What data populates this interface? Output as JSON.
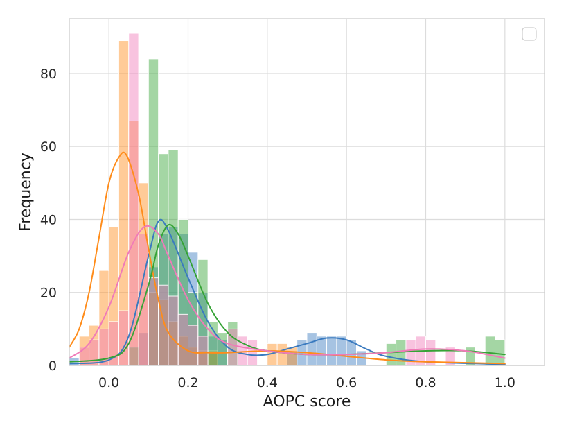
{
  "chart_data": {
    "type": "histogram",
    "title": "",
    "xlabel": "AOPC score",
    "ylabel": "Frequency",
    "xlim": [
      -0.1,
      1.1
    ],
    "ylim": [
      0,
      95
    ],
    "xticks": [
      {
        "value": 0.0,
        "label": "0.0"
      },
      {
        "value": 0.2,
        "label": "0.2"
      },
      {
        "value": 0.4,
        "label": "0.4"
      },
      {
        "value": 0.6,
        "label": "0.6"
      },
      {
        "value": 0.8,
        "label": "0.8"
      },
      {
        "value": 1.0,
        "label": "1.0"
      }
    ],
    "yticks": [
      {
        "value": 0,
        "label": "0"
      },
      {
        "value": 20,
        "label": "20"
      },
      {
        "value": 40,
        "label": "40"
      },
      {
        "value": 60,
        "label": "60"
      },
      {
        "value": 80,
        "label": "80"
      }
    ],
    "grid": true,
    "legend": {
      "placement": "top-right",
      "entries": []
    },
    "bin_width": 0.025,
    "series": [
      {
        "color": "#3a7abf",
        "bins": [
          {
            "x": -0.1,
            "y": 2
          },
          {
            "x": 0.075,
            "y": 9
          },
          {
            "x": 0.1,
            "y": 27
          },
          {
            "x": 0.125,
            "y": 36
          },
          {
            "x": 0.15,
            "y": 38
          },
          {
            "x": 0.175,
            "y": 36
          },
          {
            "x": 0.2,
            "y": 31
          },
          {
            "x": 0.225,
            "y": 20
          },
          {
            "x": 0.25,
            "y": 8
          },
          {
            "x": 0.275,
            "y": 7
          },
          {
            "x": 0.45,
            "y": 4
          },
          {
            "x": 0.475,
            "y": 7
          },
          {
            "x": 0.5,
            "y": 9
          },
          {
            "x": 0.525,
            "y": 8
          },
          {
            "x": 0.55,
            "y": 8
          },
          {
            "x": 0.575,
            "y": 8
          },
          {
            "x": 0.6,
            "y": 7
          },
          {
            "x": 0.625,
            "y": 4
          }
        ],
        "kde": [
          [
            -0.1,
            0.5
          ],
          [
            0.0,
            1.5
          ],
          [
            0.05,
            8
          ],
          [
            0.1,
            30
          ],
          [
            0.125,
            39.5
          ],
          [
            0.15,
            37
          ],
          [
            0.2,
            24
          ],
          [
            0.25,
            12
          ],
          [
            0.3,
            5
          ],
          [
            0.35,
            3
          ],
          [
            0.4,
            3
          ],
          [
            0.45,
            4.5
          ],
          [
            0.5,
            6
          ],
          [
            0.55,
            7.5
          ],
          [
            0.6,
            7
          ],
          [
            0.65,
            4.5
          ],
          [
            0.7,
            2.5
          ],
          [
            0.8,
            1
          ],
          [
            1.0,
            0.3
          ]
        ]
      },
      {
        "color": "#ff8c1a",
        "bins": [
          {
            "x": -0.075,
            "y": 8
          },
          {
            "x": -0.05,
            "y": 11
          },
          {
            "x": -0.025,
            "y": 26
          },
          {
            "x": 0.0,
            "y": 38
          },
          {
            "x": 0.025,
            "y": 89
          },
          {
            "x": 0.05,
            "y": 67
          },
          {
            "x": 0.075,
            "y": 50
          },
          {
            "x": 0.1,
            "y": 20
          },
          {
            "x": 0.125,
            "y": 18
          },
          {
            "x": 0.15,
            "y": 12
          },
          {
            "x": 0.175,
            "y": 8
          },
          {
            "x": 0.2,
            "y": 5
          },
          {
            "x": 0.225,
            "y": 4
          },
          {
            "x": 0.25,
            "y": 4
          },
          {
            "x": 0.4,
            "y": 6
          },
          {
            "x": 0.425,
            "y": 6
          },
          {
            "x": 0.45,
            "y": 5
          }
        ],
        "kde": [
          [
            -0.1,
            5
          ],
          [
            -0.075,
            10
          ],
          [
            -0.05,
            20
          ],
          [
            -0.025,
            35
          ],
          [
            0.0,
            50
          ],
          [
            0.025,
            57
          ],
          [
            0.045,
            57.5
          ],
          [
            0.075,
            47
          ],
          [
            0.1,
            32
          ],
          [
            0.125,
            18
          ],
          [
            0.15,
            9
          ],
          [
            0.2,
            4
          ],
          [
            0.25,
            3.5
          ],
          [
            0.3,
            3.5
          ],
          [
            0.4,
            4
          ],
          [
            0.5,
            3.5
          ],
          [
            0.6,
            2.5
          ],
          [
            0.7,
            1.5
          ],
          [
            0.8,
            1
          ],
          [
            1.0,
            0.5
          ]
        ]
      },
      {
        "color": "#36a336",
        "bins": [
          {
            "x": 0.05,
            "y": 5
          },
          {
            "x": 0.1,
            "y": 84
          },
          {
            "x": 0.125,
            "y": 58
          },
          {
            "x": 0.15,
            "y": 59
          },
          {
            "x": 0.175,
            "y": 40
          },
          {
            "x": 0.2,
            "y": 20
          },
          {
            "x": 0.225,
            "y": 29
          },
          {
            "x": 0.25,
            "y": 12
          },
          {
            "x": 0.275,
            "y": 9
          },
          {
            "x": 0.3,
            "y": 12
          },
          {
            "x": 0.7,
            "y": 6
          },
          {
            "x": 0.725,
            "y": 7
          },
          {
            "x": 0.9,
            "y": 5
          },
          {
            "x": 0.95,
            "y": 8
          },
          {
            "x": 0.975,
            "y": 7
          }
        ],
        "kde": [
          [
            -0.1,
            1
          ],
          [
            0.0,
            2
          ],
          [
            0.05,
            6
          ],
          [
            0.1,
            22
          ],
          [
            0.125,
            33
          ],
          [
            0.15,
            38.5
          ],
          [
            0.175,
            36
          ],
          [
            0.2,
            30
          ],
          [
            0.25,
            17
          ],
          [
            0.3,
            9
          ],
          [
            0.35,
            5.5
          ],
          [
            0.4,
            4
          ],
          [
            0.5,
            3
          ],
          [
            0.6,
            3
          ],
          [
            0.7,
            3.5
          ],
          [
            0.8,
            4
          ],
          [
            0.9,
            4
          ],
          [
            1.0,
            3
          ]
        ]
      },
      {
        "color": "#f07ab8",
        "bins": [
          {
            "x": -0.075,
            "y": 5
          },
          {
            "x": -0.05,
            "y": 7
          },
          {
            "x": -0.025,
            "y": 10
          },
          {
            "x": 0.0,
            "y": 12
          },
          {
            "x": 0.025,
            "y": 15
          },
          {
            "x": 0.05,
            "y": 91
          },
          {
            "x": 0.075,
            "y": 36
          },
          {
            "x": 0.1,
            "y": 24
          },
          {
            "x": 0.125,
            "y": 22
          },
          {
            "x": 0.15,
            "y": 19
          },
          {
            "x": 0.175,
            "y": 14
          },
          {
            "x": 0.2,
            "y": 11
          },
          {
            "x": 0.225,
            "y": 8
          },
          {
            "x": 0.3,
            "y": 10
          },
          {
            "x": 0.325,
            "y": 8
          },
          {
            "x": 0.35,
            "y": 7
          },
          {
            "x": 0.75,
            "y": 7
          },
          {
            "x": 0.775,
            "y": 8
          },
          {
            "x": 0.8,
            "y": 7
          },
          {
            "x": 0.85,
            "y": 5
          }
        ],
        "kde": [
          [
            -0.1,
            2
          ],
          [
            -0.05,
            6
          ],
          [
            0.0,
            16
          ],
          [
            0.05,
            31
          ],
          [
            0.09,
            38
          ],
          [
            0.125,
            36
          ],
          [
            0.15,
            30
          ],
          [
            0.2,
            18
          ],
          [
            0.25,
            10
          ],
          [
            0.3,
            6
          ],
          [
            0.4,
            4
          ],
          [
            0.5,
            3
          ],
          [
            0.6,
            3
          ],
          [
            0.7,
            3.5
          ],
          [
            0.8,
            4.5
          ],
          [
            0.9,
            4
          ],
          [
            1.0,
            2
          ]
        ]
      }
    ]
  }
}
